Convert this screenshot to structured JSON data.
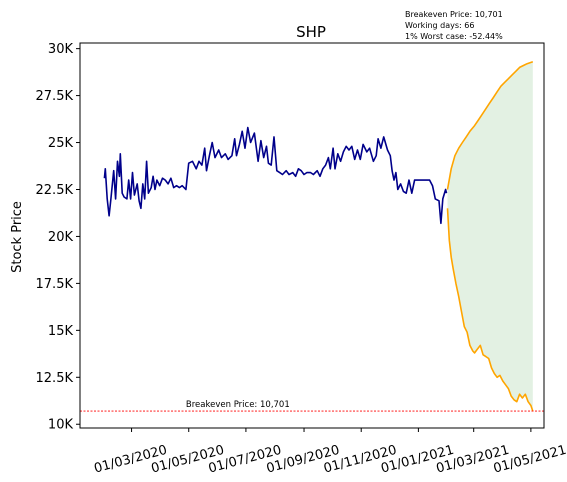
{
  "annotations": [
    "Breakeven Price: 10,701",
    "Working days: 66",
    "1% Worst case: -52.44%"
  ],
  "colors": {
    "history": "#00008b",
    "projection": "#ffa500",
    "band_fill": "#e3f1e3",
    "breakeven_line": "#ff0000"
  },
  "chart_data": {
    "type": "line",
    "title": "SHP",
    "xlabel": "",
    "ylabel": "Stock Price",
    "x_axis_type": "date",
    "xlim": [
      "2020-01-06",
      "2021-05-15"
    ],
    "ylim": [
      9800,
      30300
    ],
    "grid": false,
    "x_tick_labels": [
      {
        "date": "2020-03-01",
        "label": "01/03/2020"
      },
      {
        "date": "2020-05-01",
        "label": "01/05/2020"
      },
      {
        "date": "2020-07-01",
        "label": "01/07/2020"
      },
      {
        "date": "2020-09-01",
        "label": "01/09/2020"
      },
      {
        "date": "2020-11-01",
        "label": "01/11/2020"
      },
      {
        "date": "2021-01-01",
        "label": "01/01/2021"
      },
      {
        "date": "2021-03-01",
        "label": "01/03/2021"
      },
      {
        "date": "2021-05-01",
        "label": "01/05/2021"
      }
    ],
    "y_tick_labels": [
      {
        "value": 10000,
        "label": "10K"
      },
      {
        "value": 12500,
        "label": "12.5K"
      },
      {
        "value": 15000,
        "label": "15K"
      },
      {
        "value": 17500,
        "label": "17.5K"
      },
      {
        "value": 20000,
        "label": "20K"
      },
      {
        "value": 22500,
        "label": "22.5K"
      },
      {
        "value": 25000,
        "label": "25K"
      },
      {
        "value": 27500,
        "label": "27.5K"
      },
      {
        "value": 30000,
        "label": "30K"
      }
    ],
    "breakeven": {
      "value": 10701,
      "label": "Breakeven Price: 10,701"
    },
    "history": [
      [
        "2020-02-01",
        23100
      ],
      [
        "2020-02-02",
        23600
      ],
      [
        "2020-02-04",
        22000
      ],
      [
        "2020-02-06",
        21100
      ],
      [
        "2020-02-08",
        22000
      ],
      [
        "2020-02-11",
        23500
      ],
      [
        "2020-02-13",
        22000
      ],
      [
        "2020-02-15",
        24000
      ],
      [
        "2020-02-17",
        23200
      ],
      [
        "2020-02-18",
        24400
      ],
      [
        "2020-02-20",
        22300
      ],
      [
        "2020-02-22",
        22100
      ],
      [
        "2020-02-25",
        22000
      ],
      [
        "2020-02-27",
        23000
      ],
      [
        "2020-02-29",
        22000
      ],
      [
        "2020-03-02",
        23400
      ],
      [
        "2020-03-04",
        22200
      ],
      [
        "2020-03-07",
        22800
      ],
      [
        "2020-03-09",
        21900
      ],
      [
        "2020-03-11",
        21500
      ],
      [
        "2020-03-13",
        22800
      ],
      [
        "2020-03-15",
        22000
      ],
      [
        "2020-03-17",
        24000
      ],
      [
        "2020-03-19",
        22300
      ],
      [
        "2020-03-22",
        22600
      ],
      [
        "2020-03-24",
        23200
      ],
      [
        "2020-03-26",
        22500
      ],
      [
        "2020-03-28",
        23000
      ],
      [
        "2020-03-31",
        22700
      ],
      [
        "2020-04-03",
        23100
      ],
      [
        "2020-04-06",
        23000
      ],
      [
        "2020-04-09",
        22800
      ],
      [
        "2020-04-12",
        23100
      ],
      [
        "2020-04-15",
        22600
      ],
      [
        "2020-04-18",
        22700
      ],
      [
        "2020-04-21",
        22600
      ],
      [
        "2020-04-24",
        22700
      ],
      [
        "2020-04-28",
        22500
      ],
      [
        "2020-05-01",
        23900
      ],
      [
        "2020-05-05",
        24000
      ],
      [
        "2020-05-09",
        23600
      ],
      [
        "2020-05-12",
        24000
      ],
      [
        "2020-05-15",
        23800
      ],
      [
        "2020-05-18",
        24700
      ],
      [
        "2020-05-20",
        23500
      ],
      [
        "2020-05-23",
        24300
      ],
      [
        "2020-05-26",
        25000
      ],
      [
        "2020-05-29",
        24200
      ],
      [
        "2020-06-02",
        24600
      ],
      [
        "2020-06-05",
        24200
      ],
      [
        "2020-06-09",
        24400
      ],
      [
        "2020-06-12",
        24100
      ],
      [
        "2020-06-16",
        24300
      ],
      [
        "2020-06-19",
        25200
      ],
      [
        "2020-06-21",
        24300
      ],
      [
        "2020-06-24",
        24900
      ],
      [
        "2020-06-27",
        25600
      ],
      [
        "2020-06-30",
        24700
      ],
      [
        "2020-07-03",
        25800
      ],
      [
        "2020-07-06",
        25000
      ],
      [
        "2020-07-10",
        25500
      ],
      [
        "2020-07-14",
        24000
      ],
      [
        "2020-07-17",
        25100
      ],
      [
        "2020-07-20",
        24200
      ],
      [
        "2020-07-23",
        24800
      ],
      [
        "2020-07-25",
        23900
      ],
      [
        "2020-07-28",
        23800
      ],
      [
        "2020-07-31",
        25300
      ],
      [
        "2020-08-03",
        23500
      ],
      [
        "2020-08-06",
        23400
      ],
      [
        "2020-08-09",
        23300
      ],
      [
        "2020-08-13",
        23500
      ],
      [
        "2020-08-16",
        23300
      ],
      [
        "2020-08-20",
        23400
      ],
      [
        "2020-08-23",
        23200
      ],
      [
        "2020-08-26",
        23600
      ],
      [
        "2020-08-29",
        23500
      ],
      [
        "2020-09-01",
        23300
      ],
      [
        "2020-09-04",
        23400
      ],
      [
        "2020-09-08",
        23400
      ],
      [
        "2020-09-11",
        23300
      ],
      [
        "2020-09-15",
        23500
      ],
      [
        "2020-09-18",
        23200
      ],
      [
        "2020-09-21",
        23600
      ],
      [
        "2020-09-24",
        23800
      ],
      [
        "2020-09-27",
        24200
      ],
      [
        "2020-09-29",
        23600
      ],
      [
        "2020-10-02",
        24700
      ],
      [
        "2020-10-04",
        23600
      ],
      [
        "2020-10-07",
        24400
      ],
      [
        "2020-10-10",
        24000
      ],
      [
        "2020-10-13",
        24500
      ],
      [
        "2020-10-16",
        24800
      ],
      [
        "2020-10-19",
        24600
      ],
      [
        "2020-10-22",
        24800
      ],
      [
        "2020-10-25",
        24100
      ],
      [
        "2020-10-28",
        24600
      ],
      [
        "2020-10-31",
        24100
      ],
      [
        "2020-11-03",
        24900
      ],
      [
        "2020-11-07",
        24500
      ],
      [
        "2020-11-10",
        24700
      ],
      [
        "2020-11-14",
        24000
      ],
      [
        "2020-11-17",
        24300
      ],
      [
        "2020-11-19",
        25200
      ],
      [
        "2020-11-22",
        24700
      ],
      [
        "2020-11-25",
        25300
      ],
      [
        "2020-11-29",
        24600
      ],
      [
        "2020-12-02",
        24300
      ],
      [
        "2020-12-04",
        23500
      ],
      [
        "2020-12-06",
        23000
      ],
      [
        "2020-12-08",
        23400
      ],
      [
        "2020-12-10",
        22500
      ],
      [
        "2020-12-13",
        22800
      ],
      [
        "2020-12-16",
        22400
      ],
      [
        "2020-12-19",
        22300
      ],
      [
        "2020-12-22",
        23000
      ],
      [
        "2020-12-25",
        22300
      ],
      [
        "2020-12-28",
        23000
      ],
      [
        "2021-01-01",
        23000
      ],
      [
        "2021-01-05",
        23000
      ],
      [
        "2021-01-09",
        23000
      ],
      [
        "2021-01-13",
        23000
      ],
      [
        "2021-01-16",
        22700
      ],
      [
        "2021-01-19",
        22000
      ],
      [
        "2021-01-23",
        21900
      ],
      [
        "2021-01-25",
        20700
      ],
      [
        "2021-01-27",
        22000
      ],
      [
        "2021-01-30",
        22500
      ],
      [
        "2021-01-31",
        22300
      ]
    ],
    "projection_upper": [
      [
        "2021-02-01",
        22500
      ],
      [
        "2021-02-05",
        23600
      ],
      [
        "2021-02-09",
        24300
      ],
      [
        "2021-02-13",
        24700
      ],
      [
        "2021-02-17",
        25000
      ],
      [
        "2021-02-21",
        25300
      ],
      [
        "2021-02-25",
        25600
      ],
      [
        "2021-03-02",
        25900
      ],
      [
        "2021-03-06",
        26200
      ],
      [
        "2021-03-10",
        26500
      ],
      [
        "2021-03-14",
        26800
      ],
      [
        "2021-03-18",
        27100
      ],
      [
        "2021-03-22",
        27400
      ],
      [
        "2021-03-26",
        27700
      ],
      [
        "2021-03-30",
        28000
      ],
      [
        "2021-04-03",
        28200
      ],
      [
        "2021-04-07",
        28400
      ],
      [
        "2021-04-11",
        28600
      ],
      [
        "2021-04-15",
        28800
      ],
      [
        "2021-04-19",
        29000
      ],
      [
        "2021-04-23",
        29100
      ],
      [
        "2021-04-27",
        29200
      ],
      [
        "2021-05-03",
        29300
      ]
    ],
    "projection_lower": [
      [
        "2021-02-01",
        21500
      ],
      [
        "2021-02-03",
        19800
      ],
      [
        "2021-02-05",
        18900
      ],
      [
        "2021-02-07",
        18300
      ],
      [
        "2021-02-10",
        17500
      ],
      [
        "2021-02-13",
        16800
      ],
      [
        "2021-02-16",
        16000
      ],
      [
        "2021-02-19",
        15200
      ],
      [
        "2021-02-22",
        14900
      ],
      [
        "2021-02-25",
        14200
      ],
      [
        "2021-02-28",
        13900
      ],
      [
        "2021-03-02",
        13800
      ],
      [
        "2021-03-05",
        14000
      ],
      [
        "2021-03-08",
        14200
      ],
      [
        "2021-03-11",
        13700
      ],
      [
        "2021-03-14",
        13600
      ],
      [
        "2021-03-17",
        13500
      ],
      [
        "2021-03-20",
        13000
      ],
      [
        "2021-03-23",
        12700
      ],
      [
        "2021-03-26",
        12500
      ],
      [
        "2021-03-29",
        12600
      ],
      [
        "2021-04-01",
        12300
      ],
      [
        "2021-04-04",
        12100
      ],
      [
        "2021-04-07",
        11900
      ],
      [
        "2021-04-10",
        11500
      ],
      [
        "2021-04-13",
        11300
      ],
      [
        "2021-04-16",
        11200
      ],
      [
        "2021-04-19",
        11600
      ],
      [
        "2021-04-22",
        11400
      ],
      [
        "2021-04-25",
        11600
      ],
      [
        "2021-04-28",
        11200
      ],
      [
        "2021-05-01",
        11000
      ],
      [
        "2021-05-03",
        10700
      ]
    ]
  }
}
